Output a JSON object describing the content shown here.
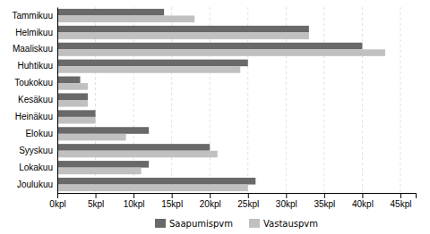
{
  "chart_data": {
    "type": "bar",
    "orientation": "horizontal",
    "categories": [
      "Tammikuu",
      "Helmikuu",
      "Maaliskuu",
      "Huhtikuu",
      "Toukokuu",
      "Kesäkuu",
      "Heinäkuu",
      "Elokuu",
      "Syyskuu",
      "Lokakuu",
      "Joulukuu"
    ],
    "series": [
      {
        "name": "Saapumispvm",
        "color": "#696969",
        "values": [
          14,
          33,
          40,
          25,
          3,
          4,
          5,
          12,
          20,
          12,
          26
        ]
      },
      {
        "name": "Vastauspvm",
        "color": "#c0c0c0",
        "values": [
          18,
          33,
          43,
          24,
          4,
          4,
          5,
          9,
          21,
          11,
          25
        ]
      }
    ],
    "xlim": [
      0,
      47
    ],
    "xticks": [
      {
        "value": 0,
        "label": "0kpl"
      },
      {
        "value": 5,
        "label": "5kpl"
      },
      {
        "value": 10,
        "label": "10kpl"
      },
      {
        "value": 15,
        "label": "15kpl"
      },
      {
        "value": 20,
        "label": "20kpl"
      },
      {
        "value": 25,
        "label": "25kpl"
      },
      {
        "value": 30,
        "label": "30kpl"
      },
      {
        "value": 35,
        "label": "35kpl"
      },
      {
        "value": 40,
        "label": "40kpl"
      },
      {
        "value": 45,
        "label": "45kpl"
      }
    ],
    "grid": true,
    "legend": "bottom"
  }
}
